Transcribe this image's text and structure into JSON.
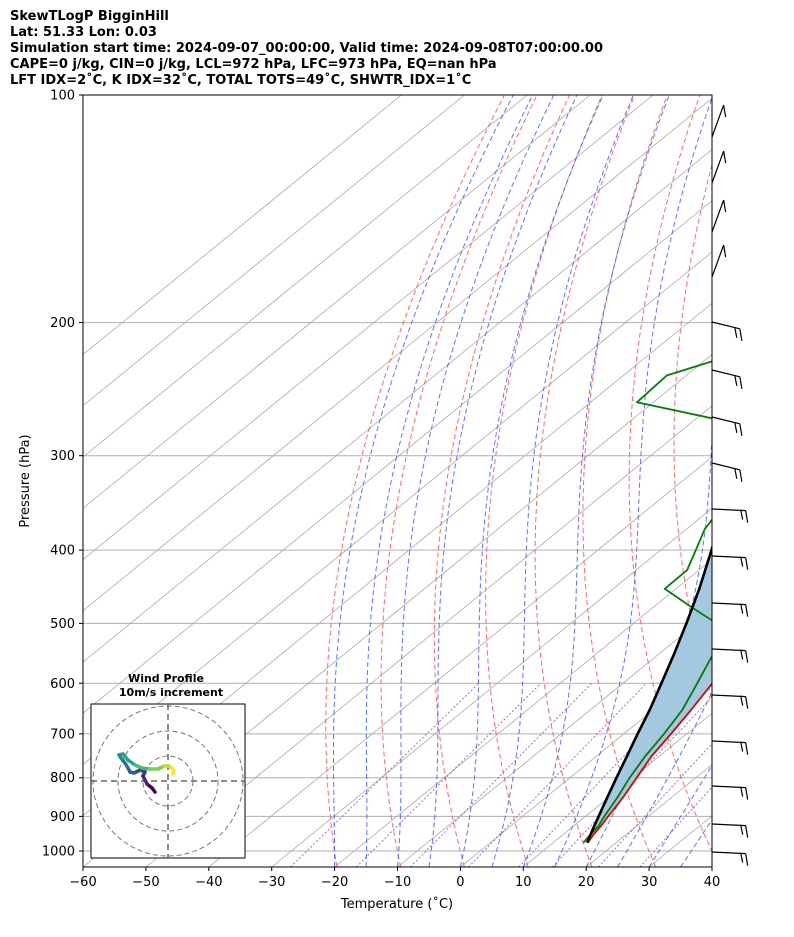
{
  "header": {
    "line1": "SkewTLogP BigginHill",
    "line2": "Lat: 51.33   Lon: 0.03",
    "line3": "Simulation start time: 2024-09-07_00:00:00, Valid time: 2024-09-08T07:00:00.00",
    "line4": "CAPE=0 j/kg, CIN=0 j/kg, LCL=972 hPa, LFC=973 hPa, EQ=nan hPa",
    "line5": "LFT IDX=2˚C, K IDX=32˚C, TOTAL TOTS=49˚C, SHWTR_IDX=1˚C"
  },
  "chart_data": {
    "type": "skewt",
    "xlabel": "Temperature (˚C)",
    "ylabel": "Pressure (hPa)",
    "xlim": [
      -60,
      40
    ],
    "ylim": [
      1050,
      100
    ],
    "x_ticks": [
      -60,
      -50,
      -40,
      -30,
      -20,
      -10,
      0,
      10,
      20,
      30,
      40
    ],
    "x_tick_labels": [
      "−60",
      "−50",
      "−40",
      "−30",
      "−20",
      "−10",
      "0",
      "10",
      "20",
      "30",
      "40"
    ],
    "y_ticks": [
      1000,
      900,
      800,
      700,
      600,
      500,
      400,
      300,
      200,
      100
    ],
    "y_tick_labels": [
      "1000",
      "900",
      "800",
      "700",
      "600",
      "500",
      "400",
      "300",
      "200",
      "100"
    ],
    "grid": true,
    "colors": {
      "temperature": "#e00000",
      "dewpoint": "#008000",
      "parcel": "#000000",
      "cape_fill": "#a3c8e0",
      "dry_adiabat": "#ff5a5a",
      "moist_adiabat": "#3f5bff",
      "mixing_ratio": "#9d42c9",
      "isotherm": "#aaaaaa"
    },
    "series": [
      {
        "name": "temperature",
        "values": [
          [
            975,
            15.5
          ],
          [
            950,
            14.8
          ],
          [
            925,
            14.3
          ],
          [
            900,
            13.6
          ],
          [
            850,
            12.3
          ],
          [
            800,
            10.6
          ],
          [
            750,
            8.8
          ],
          [
            700,
            7.5
          ],
          [
            650,
            6.0
          ],
          [
            600,
            4.2
          ],
          [
            550,
            2.4
          ],
          [
            500,
            -0.5
          ],
          [
            475,
            -3.3
          ],
          [
            450,
            -6.2
          ],
          [
            425,
            -9.5
          ],
          [
            400,
            -12.9
          ],
          [
            375,
            -17.5
          ],
          [
            350,
            -21.9
          ],
          [
            325,
            -27.5
          ],
          [
            300,
            -32.8
          ],
          [
            290,
            -34.6
          ],
          [
            280,
            -36.3
          ],
          [
            270,
            -38.3
          ],
          [
            260,
            -40.2
          ],
          [
            250,
            -42.9
          ],
          [
            240,
            -45.5
          ],
          [
            230,
            -48.0
          ],
          [
            220,
            -50.5
          ],
          [
            210,
            -53.5
          ],
          [
            200,
            -56.8
          ],
          [
            190,
            -60.0
          ],
          [
            180,
            -63.4
          ],
          [
            170,
            -66.4
          ],
          [
            160,
            -67.7
          ],
          [
            150,
            -67.6
          ],
          [
            140,
            -69.2
          ],
          [
            130,
            -70.7
          ],
          [
            120,
            -73.8
          ],
          [
            110,
            -74.6
          ],
          [
            100,
            -76.0
          ]
        ]
      },
      {
        "name": "dewpoint",
        "values": [
          [
            975,
            14.8
          ],
          [
            950,
            14.3
          ],
          [
            925,
            13.9
          ],
          [
            900,
            13.0
          ],
          [
            850,
            11.4
          ],
          [
            800,
            9.5
          ],
          [
            750,
            7.8
          ],
          [
            700,
            6.4
          ],
          [
            650,
            4.6
          ],
          [
            600,
            1.8
          ],
          [
            550,
            -1.3
          ],
          [
            525,
            -4.0
          ],
          [
            500,
            -6.8
          ],
          [
            475,
            -14.2
          ],
          [
            450,
            -21.8
          ],
          [
            425,
            -21.9
          ],
          [
            400,
            -24.4
          ],
          [
            375,
            -27.1
          ],
          [
            350,
            -28.7
          ],
          [
            325,
            -31.3
          ],
          [
            300,
            -33.7
          ],
          [
            275,
            -39.3
          ],
          [
            255,
            -62.6
          ],
          [
            235,
            -63.1
          ],
          [
            225,
            -58.6
          ],
          [
            210,
            -56.5
          ],
          [
            200,
            -57.9
          ],
          [
            180,
            -63.6
          ],
          [
            160,
            -69.5
          ],
          [
            140,
            -74.1
          ],
          [
            120,
            -82.0
          ],
          [
            100,
            -91.0
          ]
        ]
      },
      {
        "name": "parcel",
        "values": [
          [
            975,
            15.4
          ],
          [
            950,
            14.3
          ],
          [
            925,
            13.2
          ],
          [
            900,
            12.1
          ],
          [
            850,
            9.8
          ],
          [
            800,
            7.4
          ],
          [
            750,
            4.9
          ],
          [
            700,
            2.2
          ],
          [
            650,
            -0.6
          ],
          [
            600,
            -3.9
          ],
          [
            550,
            -7.5
          ],
          [
            500,
            -11.6
          ],
          [
            450,
            -16.3
          ],
          [
            400,
            -21.9
          ],
          [
            350,
            -28.4
          ],
          [
            300,
            -36.4
          ],
          [
            275,
            -41.2
          ],
          [
            250,
            -46.6
          ],
          [
            225,
            -52.8
          ],
          [
            200,
            -59.9
          ],
          [
            180,
            -66.2
          ],
          [
            160,
            -73.0
          ],
          [
            140,
            -80.7
          ],
          [
            120,
            -89.2
          ],
          [
            100,
            -98.8
          ]
        ]
      }
    ],
    "wind_profile": {
      "title": "Wind Profile",
      "subtitle": "10m/s increment"
    }
  }
}
